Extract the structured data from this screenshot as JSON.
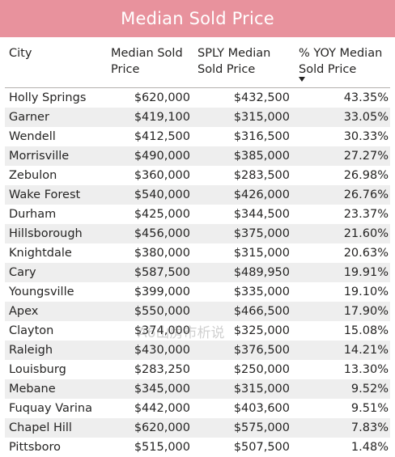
{
  "title": "Median Sold Price",
  "columns": {
    "city": "City",
    "median_line1": "Median Sold",
    "median_line2": "Price",
    "sply_line1": "SPLY Median",
    "sply_line2": "Sold Price",
    "yoy_line1": "% YOY Median",
    "yoy_line2": "Sold Price",
    "sort_indicator": "sort-descending"
  },
  "rows": [
    {
      "city": "Holly Springs",
      "median": "$620,000",
      "sply": "$432,500",
      "yoy": "43.35%"
    },
    {
      "city": "Garner",
      "median": "$419,100",
      "sply": "$315,000",
      "yoy": "33.05%"
    },
    {
      "city": "Wendell",
      "median": "$412,500",
      "sply": "$316,500",
      "yoy": "30.33%"
    },
    {
      "city": "Morrisville",
      "median": "$490,000",
      "sply": "$385,000",
      "yoy": "27.27%"
    },
    {
      "city": "Zebulon",
      "median": "$360,000",
      "sply": "$283,500",
      "yoy": "26.98%"
    },
    {
      "city": "Wake Forest",
      "median": "$540,000",
      "sply": "$426,000",
      "yoy": "26.76%"
    },
    {
      "city": "Durham",
      "median": "$425,000",
      "sply": "$344,500",
      "yoy": "23.37%"
    },
    {
      "city": "Hillsborough",
      "median": "$456,000",
      "sply": "$375,000",
      "yoy": "21.60%"
    },
    {
      "city": "Knightdale",
      "median": "$380,000",
      "sply": "$315,000",
      "yoy": "20.63%"
    },
    {
      "city": "Cary",
      "median": "$587,500",
      "sply": "$489,950",
      "yoy": "19.91%"
    },
    {
      "city": "Youngsville",
      "median": "$399,000",
      "sply": "$335,000",
      "yoy": "19.10%"
    },
    {
      "city": "Apex",
      "median": "$550,000",
      "sply": "$466,500",
      "yoy": "17.90%"
    },
    {
      "city": "Clayton",
      "median": "$374,000",
      "sply": "$325,000",
      "yoy": "15.08%"
    },
    {
      "city": "Raleigh",
      "median": "$430,000",
      "sply": "$376,500",
      "yoy": "14.21%"
    },
    {
      "city": "Louisburg",
      "median": "$283,250",
      "sply": "$250,000",
      "yoy": "13.30%"
    },
    {
      "city": "Mebane",
      "median": "$345,000",
      "sply": "$315,000",
      "yoy": "9.52%"
    },
    {
      "city": "Fuquay Varina",
      "median": "$442,000",
      "sply": "$403,600",
      "yoy": "9.51%"
    },
    {
      "city": "Chapel Hill",
      "median": "$620,000",
      "sply": "$575,000",
      "yoy": "7.83%"
    },
    {
      "city": "Pittsboro",
      "median": "$515,000",
      "sply": "$507,500",
      "yoy": "1.48%"
    }
  ],
  "watermark": "A6山房市析说"
}
